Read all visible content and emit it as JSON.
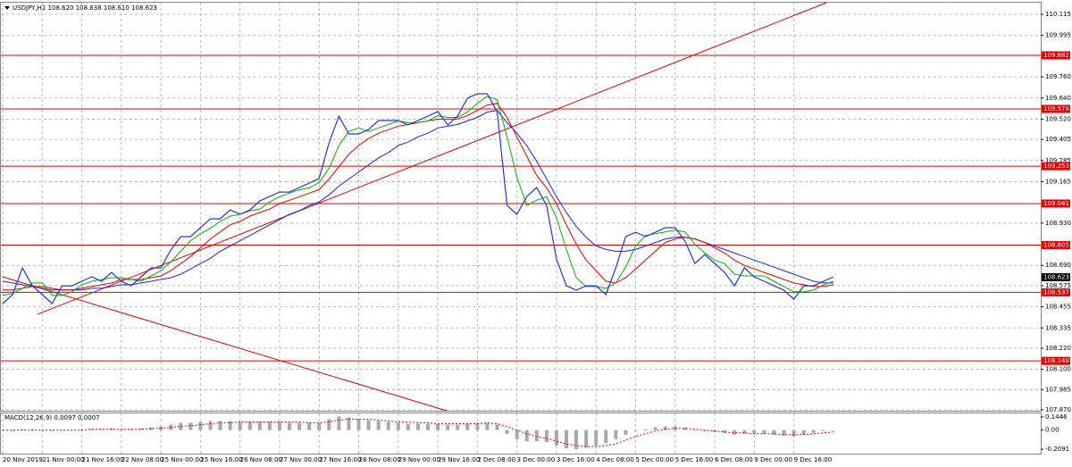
{
  "chart_data": {
    "type": "line",
    "title": "USDJPY,H1  108.620 108.638 108.610 108.623",
    "categories": [
      "20 Nov 2019",
      null,
      null,
      null,
      "21 Nov 00:00",
      null,
      null,
      null,
      "21 Nov 16:00",
      null,
      null,
      null,
      "22 Nov 08:00",
      null,
      null,
      null,
      "25 Nov 00:00",
      null,
      null,
      null,
      "25 Nov 16:00",
      null,
      null,
      null,
      "26 Nov 08:00",
      null,
      null,
      null,
      "27 Nov 00:00",
      null,
      null,
      null,
      "27 Nov 16:00",
      null,
      null,
      null,
      "28 Nov 08:00",
      null,
      null,
      null,
      "29 Nov 00:00",
      null,
      null,
      null,
      "29 Nov 16:00",
      null,
      null,
      null,
      "2 Dec 08:00",
      null,
      null,
      null,
      "3 Dec 00:00",
      null,
      null,
      null,
      "3 Dec 16:00",
      null,
      null,
      null,
      "4 Dec 08:00",
      null,
      null,
      null,
      "5 Dec 00:00",
      null,
      null,
      null,
      "5 Dec 16:00",
      null,
      null,
      null,
      "6 Dec 08:00",
      null,
      null,
      null,
      "9 Dec 00:00",
      null,
      null,
      null,
      "9 Dec 16:00",
      null,
      null,
      null,
      null
    ],
    "series": [
      {
        "name": "USDJPY",
        "color": "#2435d8",
        "values": [
          108.473,
          108.524,
          108.676,
          108.574,
          108.524,
          108.473,
          108.574,
          108.574,
          108.6,
          108.625,
          108.6,
          108.65,
          108.6,
          108.574,
          108.625,
          108.676,
          108.676,
          108.777,
          108.853,
          108.853,
          108.904,
          108.954,
          108.954,
          109.005,
          108.98,
          109.005,
          109.056,
          109.081,
          109.106,
          109.106,
          109.132,
          109.157,
          109.183,
          109.385,
          109.537,
          109.436,
          109.436,
          109.461,
          109.512,
          109.512,
          109.512,
          109.487,
          109.512,
          109.537,
          109.563,
          109.487,
          109.537,
          109.639,
          109.664,
          109.664,
          109.563,
          109.03,
          108.98,
          109.081,
          109.132,
          109.03,
          108.726,
          108.574,
          108.549,
          108.574,
          108.574,
          108.524,
          108.676,
          108.853,
          108.878,
          108.853,
          108.878,
          108.904,
          108.904,
          108.828,
          108.701,
          108.752,
          108.701,
          108.65,
          108.574,
          108.676,
          108.625,
          108.6,
          108.574,
          108.549,
          108.498,
          108.574,
          108.574,
          108.6,
          108.625
        ]
      },
      {
        "color": "#00b400",
        "values": [
          108.52,
          108.53,
          108.56,
          108.59,
          108.59,
          108.52,
          108.52,
          108.54,
          108.58,
          108.6,
          108.61,
          108.62,
          108.62,
          108.61,
          108.6,
          108.63,
          108.66,
          108.71,
          108.77,
          108.83,
          108.87,
          108.9,
          108.94,
          108.97,
          108.98,
          109.0,
          109.01,
          109.05,
          109.08,
          109.1,
          109.12,
          109.13,
          109.16,
          109.24,
          109.37,
          109.45,
          109.47,
          109.45,
          109.47,
          109.49,
          109.51,
          109.5,
          109.5,
          109.51,
          109.54,
          109.53,
          109.53,
          109.56,
          109.61,
          109.65,
          109.63,
          109.42,
          109.19,
          109.03,
          109.06,
          109.08,
          108.96,
          108.78,
          108.62,
          108.57,
          108.57,
          108.56,
          108.59,
          108.68,
          108.8,
          108.86,
          108.87,
          108.88,
          108.89,
          108.88,
          108.81,
          108.76,
          108.72,
          108.7,
          108.64,
          108.63,
          108.63,
          108.63,
          108.6,
          108.57,
          108.54,
          108.54,
          108.55,
          108.58,
          108.6
        ]
      },
      {
        "color": "#e00000",
        "values": [
          108.55,
          108.55,
          108.56,
          108.57,
          108.57,
          108.56,
          108.55,
          108.55,
          108.56,
          108.57,
          108.58,
          108.59,
          108.61,
          108.61,
          108.61,
          108.62,
          108.63,
          108.66,
          108.7,
          108.74,
          108.79,
          108.84,
          108.88,
          108.92,
          108.94,
          108.97,
          108.99,
          109.01,
          109.04,
          109.06,
          109.08,
          109.1,
          109.12,
          109.18,
          109.25,
          109.32,
          109.37,
          109.41,
          109.44,
          109.46,
          109.48,
          109.49,
          109.5,
          109.51,
          109.52,
          109.52,
          109.52,
          109.54,
          109.57,
          109.6,
          109.61,
          109.53,
          109.42,
          109.31,
          109.2,
          109.13,
          109.04,
          108.92,
          108.81,
          108.72,
          108.66,
          108.6,
          108.59,
          108.62,
          108.67,
          108.72,
          108.77,
          108.82,
          108.84,
          108.85,
          108.84,
          108.82,
          108.79,
          108.76,
          108.72,
          108.69,
          108.67,
          108.65,
          108.63,
          108.61,
          108.59,
          108.58,
          108.57,
          108.57,
          108.58
        ]
      },
      {
        "color": "#2020e0",
        "values": [
          108.6,
          108.59,
          108.58,
          108.57,
          108.56,
          108.55,
          108.55,
          108.55,
          108.55,
          108.56,
          108.56,
          108.57,
          108.58,
          108.58,
          108.59,
          108.6,
          108.61,
          108.62,
          108.64,
          108.67,
          108.7,
          108.73,
          108.77,
          108.8,
          108.83,
          108.86,
          108.89,
          108.92,
          108.95,
          108.98,
          109.0,
          109.03,
          109.05,
          109.09,
          109.14,
          109.18,
          109.22,
          109.26,
          109.3,
          109.33,
          109.37,
          109.39,
          109.42,
          109.44,
          109.47,
          109.48,
          109.49,
          109.51,
          109.53,
          109.56,
          109.57,
          109.5,
          109.44,
          109.37,
          109.28,
          109.18,
          109.08,
          108.99,
          108.91,
          108.85,
          108.8,
          108.78,
          108.77,
          108.77,
          108.78,
          108.8,
          108.82,
          108.84,
          108.85,
          108.85,
          108.84,
          108.82,
          108.8,
          108.78,
          108.76,
          108.74,
          108.72,
          108.7,
          108.68,
          108.66,
          108.64,
          108.62,
          108.6,
          108.59,
          108.59
        ]
      }
    ],
    "ylim": [
      107.865,
      110.181
    ],
    "yticks": [
      110.115,
      109.995,
      {
        "value": 109.76,
        "label": "109.760"
      },
      {
        "value": 109.64,
        "label": "109.640"
      },
      {
        "value": 109.52,
        "label": "109.520"
      },
      109.405,
      109.285,
      109.165,
      {
        "value": 108.93,
        "label": "108.930"
      },
      {
        "value": 108.69,
        "label": "108.690"
      },
      108.575,
      108.455,
      108.335,
      {
        "value": 108.22,
        "label": "108.220"
      },
      {
        "value": 108.1,
        "label": "108.100"
      },
      107.985,
      {
        "value": 107.87,
        "label": "107.870"
      }
    ],
    "grid": true,
    "levels": [
      109.882,
      109.578,
      109.253,
      109.041,
      108.805,
      108.537,
      108.148
    ],
    "level_color": "#e00000",
    "current_price": 108.623,
    "trend_lines": [
      {
        "x": [
          3.5,
          83.3
        ],
        "y": [
          108.412,
          110.181
        ]
      },
      {
        "x": [
          0,
          44.9
        ],
        "y": [
          108.625,
          107.865
        ]
      }
    ],
    "macd": {
      "label": "MACD(12,26,9) 0.0097 0.0007",
      "hist_color": "#a8a8a8",
      "signal_color": "#e00000",
      "values": [
        0.0,
        -0.01,
        0.01,
        0.01,
        0.0,
        -0.01,
        0.0,
        0.0,
        0.01,
        0.01,
        0.01,
        0.02,
        0.01,
        0.01,
        0.02,
        0.03,
        0.04,
        0.06,
        0.08,
        0.08,
        0.09,
        0.1,
        0.1,
        0.1,
        0.09,
        0.09,
        0.09,
        0.09,
        0.09,
        0.08,
        0.08,
        0.08,
        0.08,
        0.12,
        0.15,
        0.14,
        0.12,
        0.11,
        0.1,
        0.09,
        0.08,
        0.07,
        0.07,
        0.07,
        0.07,
        0.06,
        0.06,
        0.07,
        0.08,
        0.08,
        0.06,
        -0.04,
        -0.1,
        -0.12,
        -0.12,
        -0.13,
        -0.17,
        -0.2,
        -0.21,
        -0.19,
        -0.17,
        -0.14,
        -0.1,
        -0.05,
        -0.01,
        0.01,
        0.03,
        0.04,
        0.04,
        0.03,
        0.0,
        -0.01,
        -0.02,
        -0.03,
        -0.05,
        -0.04,
        -0.04,
        -0.04,
        -0.05,
        -0.06,
        -0.07,
        -0.05,
        -0.03,
        -0.01,
        0.0
      ],
      "signal": [
        0.0,
        0.0,
        0.0,
        0.0,
        0.0,
        0.0,
        0.0,
        0.0,
        0.0,
        0.01,
        0.01,
        0.01,
        0.01,
        0.01,
        0.01,
        0.02,
        0.02,
        0.03,
        0.04,
        0.05,
        0.06,
        0.07,
        0.08,
        0.08,
        0.09,
        0.09,
        0.09,
        0.09,
        0.09,
        0.09,
        0.09,
        0.08,
        0.08,
        0.09,
        0.11,
        0.12,
        0.12,
        0.12,
        0.11,
        0.1,
        0.09,
        0.09,
        0.08,
        0.08,
        0.07,
        0.07,
        0.07,
        0.07,
        0.07,
        0.08,
        0.07,
        0.04,
        0.0,
        -0.04,
        -0.07,
        -0.09,
        -0.12,
        -0.15,
        -0.17,
        -0.18,
        -0.18,
        -0.17,
        -0.15,
        -0.11,
        -0.07,
        -0.04,
        -0.01,
        0.01,
        0.02,
        0.02,
        0.01,
        0.0,
        -0.01,
        -0.02,
        -0.03,
        -0.03,
        -0.04,
        -0.04,
        -0.04,
        -0.05,
        -0.05,
        -0.05,
        -0.04,
        -0.03,
        -0.02
      ],
      "ylim": [
        -0.257,
        0.183
      ],
      "yticks": [
        0.1446,
        {
          "value": 0,
          "label": "0.00"
        },
        -0.2091
      ]
    }
  }
}
